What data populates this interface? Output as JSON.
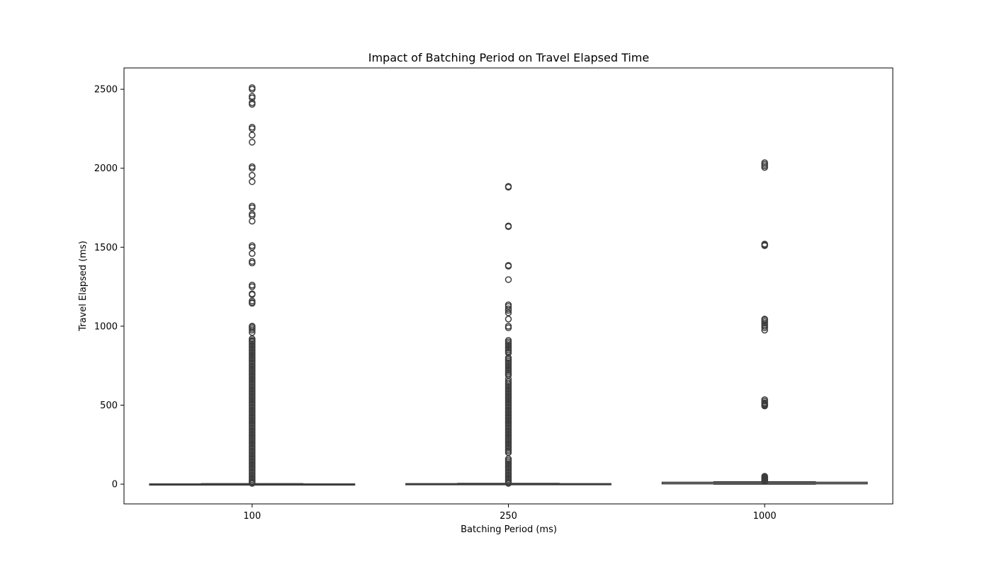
{
  "chart_data": {
    "type": "box",
    "title": "Impact of Batching Period on Travel Elapsed Time",
    "xlabel": "Batching Period (ms)",
    "ylabel": "Travel Elapsed (ms)",
    "categories": [
      "100",
      "250",
      "1000"
    ],
    "ylim": [
      -125,
      2635
    ],
    "yticks": [
      0,
      500,
      1000,
      1500,
      2000,
      2500
    ],
    "grid": false,
    "legend": "none",
    "color": "#3d3d3d",
    "boxes": [
      {
        "category": "100",
        "whisker_low": 0,
        "q1": 0,
        "median": 1,
        "q3": 1,
        "whisker_high": 3,
        "outliers": [
          2510,
          2500,
          2455,
          2445,
          2415,
          2405,
          2260,
          2250,
          2210,
          2165,
          2010,
          2000,
          1955,
          1915,
          1760,
          1750,
          1710,
          1700,
          1665,
          1510,
          1500,
          1460,
          1410,
          1400,
          1260,
          1250,
          1205,
          1200,
          1160,
          1150,
          1145,
          1000,
          995,
          985,
          975,
          960,
          920,
          910,
          905,
          900,
          890,
          880,
          870,
          860,
          850,
          840,
          830,
          820,
          810,
          800,
          790,
          780,
          770,
          760,
          750,
          740,
          730,
          720,
          710,
          700,
          690,
          680,
          670,
          660,
          650,
          640,
          630,
          620,
          610,
          600,
          590,
          580,
          570,
          560,
          550,
          540,
          530,
          520,
          510,
          500,
          490,
          480,
          470,
          460,
          450,
          440,
          430,
          420,
          410,
          400,
          390,
          380,
          370,
          360,
          350,
          340,
          330,
          320,
          310,
          300,
          290,
          280,
          270,
          260,
          250,
          240,
          230,
          220,
          210,
          200,
          190,
          180,
          170,
          160,
          150,
          140,
          130,
          120,
          110,
          100,
          90,
          80,
          70,
          60,
          50,
          40,
          30,
          20,
          15,
          10,
          5
        ]
      },
      {
        "category": "250",
        "whisker_low": 0,
        "q1": 1,
        "median": 2,
        "q3": 3,
        "whisker_high": 5,
        "outliers": [
          1885,
          1880,
          1635,
          1630,
          1385,
          1380,
          1295,
          1135,
          1125,
          1110,
          1100,
          1085,
          1045,
          1000,
          990,
          910,
          900,
          890,
          880,
          870,
          860,
          850,
          840,
          830,
          800,
          790,
          780,
          770,
          760,
          750,
          740,
          730,
          720,
          710,
          700,
          690,
          665,
          650,
          640,
          630,
          620,
          610,
          600,
          590,
          580,
          570,
          560,
          550,
          540,
          530,
          520,
          510,
          500,
          490,
          480,
          470,
          460,
          450,
          440,
          430,
          420,
          410,
          400,
          390,
          380,
          370,
          360,
          350,
          340,
          330,
          320,
          310,
          300,
          290,
          280,
          270,
          260,
          250,
          240,
          230,
          220,
          210,
          200,
          160,
          150,
          140,
          130,
          120,
          110,
          100,
          90,
          80,
          70,
          60,
          50,
          40,
          30,
          20,
          10,
          5
        ]
      },
      {
        "category": "1000",
        "whisker_low": 0,
        "q1": 2,
        "median": 4,
        "q3": 12,
        "whisker_high": 15,
        "outliers": [
          2035,
          2025,
          2015,
          2005,
          1520,
          1515,
          1510,
          1045,
          1040,
          1030,
          1020,
          1010,
          1000,
          990,
          975,
          535,
          525,
          515,
          510,
          505,
          500,
          495,
          50,
          45,
          40,
          35,
          30,
          25,
          20,
          18
        ]
      }
    ]
  }
}
